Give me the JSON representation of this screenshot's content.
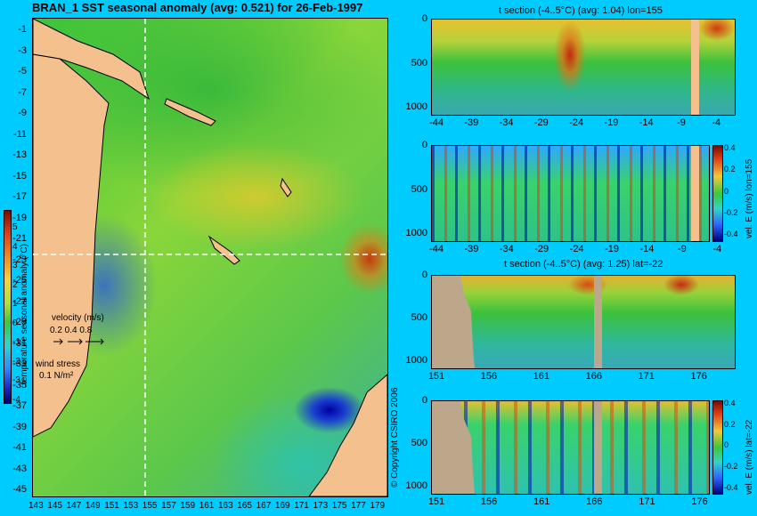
{
  "map": {
    "title": "BRAN_1 SST seasonal anomaly (avg: 0.521) for 26-Feb-1997",
    "lat_labels": [
      "-1",
      "-3",
      "-5",
      "-7",
      "-9",
      "-11",
      "-13",
      "-15",
      "-17",
      "-19",
      "-21",
      "-23",
      "-25",
      "-27",
      "-29",
      "-31",
      "-33",
      "-35",
      "-37",
      "-39",
      "-41",
      "-43",
      "-45"
    ],
    "lon_labels": [
      "143",
      "145",
      "147",
      "149",
      "151",
      "153",
      "155",
      "157",
      "159",
      "161",
      "163",
      "165",
      "167",
      "169",
      "171",
      "173",
      "175",
      "177",
      "179"
    ],
    "section_lon": 155,
    "section_lat": -22,
    "colorbar": {
      "label": "temperature seasonal anomaly (°C)",
      "ticks": [
        "5",
        "4",
        "3",
        "2",
        "1",
        "0",
        "-1",
        "-2",
        "-3",
        "-4"
      ],
      "range": [
        -4,
        5
      ]
    },
    "velocity_legend": {
      "title": "velocity (m/s)",
      "values": "0.2 0.4 0.8"
    },
    "wind_legend": {
      "title": "wind stress",
      "value": "0.1 N/m²"
    }
  },
  "copyright": "© Copyright CSIRO 2006",
  "panels": [
    {
      "title": "t section (-4..5°C) (avg: 1.04) lon=155",
      "y_ticks": [
        "0",
        "500",
        "1000"
      ],
      "x_ticks": [
        "-44",
        "-39",
        "-34",
        "-29",
        "-24",
        "-19",
        "-14",
        "-9",
        "-4"
      ],
      "side_label": ""
    },
    {
      "title": "",
      "y_ticks": [
        "0",
        "500",
        "1000"
      ],
      "x_ticks": [
        "-44",
        "-39",
        "-34",
        "-29",
        "-24",
        "-19",
        "-14",
        "-9",
        "-4"
      ],
      "side_label": "vel. E (m/s) lon=155",
      "cbar_ticks": [
        "0.4",
        "0.2",
        "0",
        "-0.2",
        "-0.4"
      ]
    },
    {
      "title": "t section (-4..5°C) (avg: 1.25) lat=-22",
      "y_ticks": [
        "0",
        "500",
        "1000"
      ],
      "x_ticks": [
        "151",
        "156",
        "161",
        "166",
        "171",
        "176"
      ],
      "side_label": ""
    },
    {
      "title": "",
      "y_ticks": [
        "0",
        "500",
        "1000"
      ],
      "x_ticks": [
        "151",
        "156",
        "161",
        "166",
        "171",
        "176"
      ],
      "side_label": "vel. E (m/s) lat=-22",
      "cbar_ticks": [
        "0.4",
        "0.2",
        "0",
        "-0.2",
        "-0.4"
      ]
    }
  ],
  "colors": {
    "background": "#00cbff",
    "land": "#f3c08e",
    "section_line": "#ffffff"
  }
}
